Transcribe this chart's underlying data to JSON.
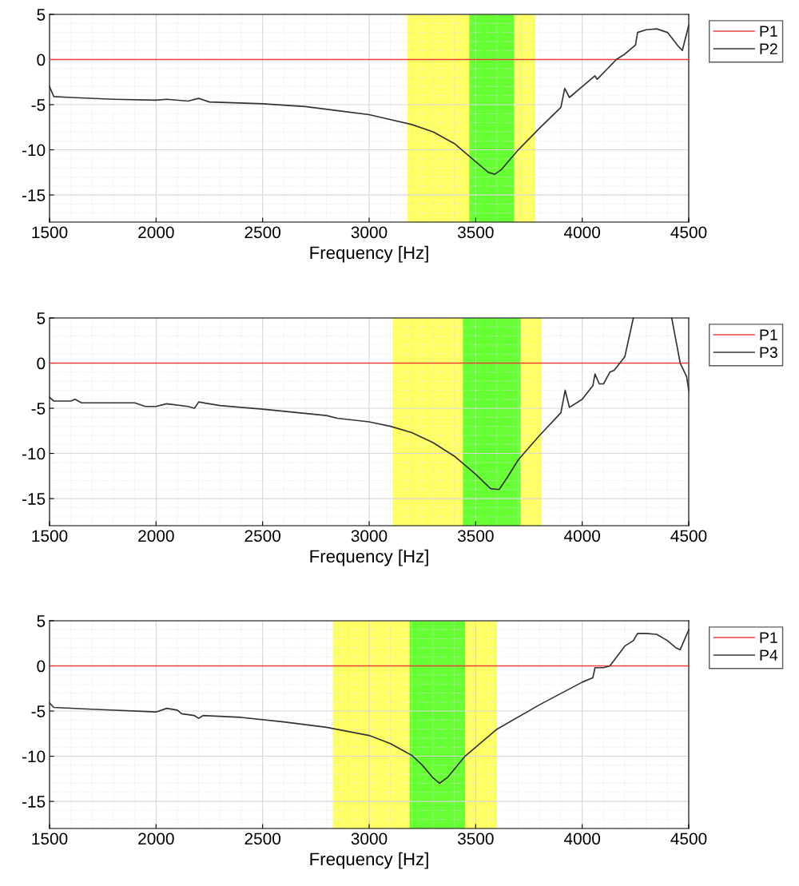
{
  "chart_data": [
    {
      "type": "line",
      "xlabel": "Frequency [Hz]",
      "xlim": [
        1500,
        4500
      ],
      "xticks": [
        1500,
        2000,
        2500,
        3000,
        3500,
        4000,
        4500
      ],
      "ylim": [
        -18,
        5
      ],
      "yticks": [
        5,
        0,
        -5,
        -10,
        -15
      ],
      "grid": true,
      "legend": "right",
      "bands": [
        {
          "axis": "x",
          "from": 3180,
          "to": 3780,
          "color": "#ffff66"
        },
        {
          "axis": "x",
          "from": 3470,
          "to": 3680,
          "color": "#66ff33"
        }
      ],
      "series": [
        {
          "name": "P1",
          "color": "#e8403f",
          "x": [
            1500,
            4500
          ],
          "values": [
            0,
            0
          ]
        },
        {
          "name": "P2",
          "color": "#333333",
          "x": [
            1500,
            1520,
            1600,
            1800,
            2000,
            2050,
            2150,
            2200,
            2250,
            2500,
            2700,
            2900,
            3000,
            3200,
            3300,
            3400,
            3500,
            3560,
            3590,
            3620,
            3700,
            3800,
            3900,
            3918,
            3940,
            4000,
            4060,
            4070,
            4160,
            4200,
            4250,
            4260,
            4300,
            4350,
            4400,
            4450,
            4470,
            4500
          ],
          "values": [
            -3,
            -4.1,
            -4.2,
            -4.4,
            -4.5,
            -4.4,
            -4.6,
            -4.3,
            -4.7,
            -4.9,
            -5.2,
            -5.8,
            -6.1,
            -7.2,
            -8,
            -9.3,
            -11.3,
            -12.5,
            -12.7,
            -12.2,
            -10,
            -7.6,
            -5.3,
            -3.2,
            -4.2,
            -3,
            -1.8,
            -2.2,
            0,
            0.6,
            1.6,
            3,
            3.3,
            3.4,
            3,
            1.5,
            1.0,
            3.8
          ]
        }
      ]
    },
    {
      "type": "line",
      "xlabel": "Frequency [Hz]",
      "xlim": [
        1500,
        4500
      ],
      "xticks": [
        1500,
        2000,
        2500,
        3000,
        3500,
        4000,
        4500
      ],
      "ylim": [
        -18,
        5
      ],
      "yticks": [
        5,
        0,
        -5,
        -10,
        -15
      ],
      "grid": true,
      "legend": "right",
      "bands": [
        {
          "axis": "x",
          "from": 3110,
          "to": 3810,
          "color": "#ffff66"
        },
        {
          "axis": "x",
          "from": 3440,
          "to": 3710,
          "color": "#66ff33"
        }
      ],
      "series": [
        {
          "name": "P1",
          "color": "#e8403f",
          "x": [
            1500,
            4500
          ],
          "values": [
            0,
            0
          ]
        },
        {
          "name": "P3",
          "color": "#333333",
          "x": [
            1500,
            1520,
            1600,
            1620,
            1650,
            1900,
            1950,
            2000,
            2050,
            2150,
            2180,
            2200,
            2300,
            2500,
            2800,
            2850,
            3000,
            3100,
            3200,
            3300,
            3400,
            3500,
            3570,
            3610,
            3650,
            3700,
            3800,
            3900,
            3920,
            3940,
            4000,
            4050,
            4060,
            4080,
            4100,
            4130,
            4150,
            4200,
            4240,
            4300,
            4420,
            4460,
            4490,
            4500
          ],
          "values": [
            -3.8,
            -4.2,
            -4.2,
            -4,
            -4.4,
            -4.4,
            -4.8,
            -4.8,
            -4.5,
            -4.8,
            -5,
            -4.3,
            -4.7,
            -5.1,
            -5.8,
            -6.1,
            -6.5,
            -7,
            -7.7,
            -8.8,
            -10.3,
            -12.3,
            -13.9,
            -14,
            -12.6,
            -10.7,
            -8,
            -5.5,
            -3,
            -4.9,
            -4,
            -2.5,
            -1.2,
            -2.3,
            -2.3,
            -1,
            -0.8,
            0.7,
            5,
            null,
            5,
            0,
            -1.5,
            -3
          ]
        }
      ]
    },
    {
      "type": "line",
      "xlabel": "Frequency [Hz]",
      "xlim": [
        1500,
        4500
      ],
      "xticks": [
        1500,
        2000,
        2500,
        3000,
        3500,
        4000,
        4500
      ],
      "ylim": [
        -18,
        5
      ],
      "yticks": [
        5,
        0,
        -5,
        -10,
        -15
      ],
      "grid": true,
      "legend": "right",
      "bands": [
        {
          "axis": "x",
          "from": 2830,
          "to": 3600,
          "color": "#ffff66"
        },
        {
          "axis": "x",
          "from": 3190,
          "to": 3450,
          "color": "#66ff33"
        }
      ],
      "series": [
        {
          "name": "P1",
          "color": "#e8403f",
          "x": [
            1500,
            4500
          ],
          "values": [
            0,
            0
          ]
        },
        {
          "name": "P4",
          "color": "#333333",
          "x": [
            1500,
            1520,
            1700,
            2000,
            2050,
            2100,
            2120,
            2180,
            2200,
            2220,
            2400,
            2600,
            2800,
            3000,
            3100,
            3200,
            3250,
            3300,
            3330,
            3370,
            3450,
            3600,
            3800,
            4000,
            4050,
            4060,
            4100,
            4130,
            4200,
            4240,
            4260,
            4300,
            4350,
            4400,
            4440,
            4460,
            4500
          ],
          "values": [
            -4.1,
            -4.6,
            -4.8,
            -5.1,
            -4.7,
            -4.9,
            -5.3,
            -5.5,
            -5.8,
            -5.5,
            -5.7,
            -6.2,
            -6.8,
            -7.7,
            -8.6,
            -9.9,
            -11,
            -12.4,
            -13,
            -12.3,
            -10,
            -7,
            -4.3,
            -1.8,
            -1.3,
            -0.2,
            -0.2,
            0,
            2.2,
            2.8,
            3.6,
            3.6,
            3.5,
            2.8,
            2,
            1.8,
            4
          ]
        }
      ]
    }
  ]
}
